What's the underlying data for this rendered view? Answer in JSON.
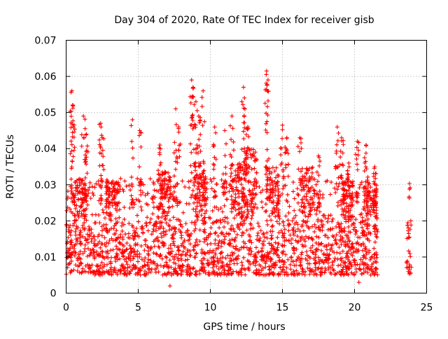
{
  "chart_data": {
    "type": "scatter",
    "title": "Day 304 of 2020, Rate Of TEC Index for receiver gisb",
    "xlabel": "GPS time / hours",
    "ylabel": "ROTI / TECUs",
    "xlim": [
      0,
      25
    ],
    "ylim": [
      0,
      0.07
    ],
    "x_ticks": [
      "0",
      "5",
      "10",
      "15",
      "20",
      "25"
    ],
    "y_ticks": [
      "0",
      "0.01",
      "0.02",
      "0.03",
      "0.04",
      "0.05",
      "0.06",
      "0.07"
    ],
    "grid": true,
    "marker": "plus",
    "color": "#ff0000",
    "series": [
      {
        "coverage": [
          [
            0.0,
            21.6
          ],
          [
            23.6,
            23.95
          ]
        ],
        "baseline_y": [
          0.005,
          0.02
        ],
        "spikes": [
          {
            "x": 0.4,
            "y": 0.056
          },
          {
            "x": 0.45,
            "y": 0.052
          },
          {
            "x": 0.5,
            "y": 0.046
          },
          {
            "x": 1.2,
            "y": 0.049
          },
          {
            "x": 1.4,
            "y": 0.044
          },
          {
            "x": 2.4,
            "y": 0.047
          },
          {
            "x": 2.5,
            "y": 0.043
          },
          {
            "x": 4.6,
            "y": 0.048
          },
          {
            "x": 5.1,
            "y": 0.045
          },
          {
            "x": 6.5,
            "y": 0.041
          },
          {
            "x": 7.6,
            "y": 0.051
          },
          {
            "x": 7.8,
            "y": 0.046
          },
          {
            "x": 8.7,
            "y": 0.059
          },
          {
            "x": 8.8,
            "y": 0.057
          },
          {
            "x": 9.0,
            "y": 0.053
          },
          {
            "x": 9.2,
            "y": 0.049
          },
          {
            "x": 9.5,
            "y": 0.056
          },
          {
            "x": 10.3,
            "y": 0.046
          },
          {
            "x": 11.0,
            "y": 0.045
          },
          {
            "x": 11.5,
            "y": 0.049
          },
          {
            "x": 12.3,
            "y": 0.057
          },
          {
            "x": 12.4,
            "y": 0.051
          },
          {
            "x": 12.6,
            "y": 0.046
          },
          {
            "x": 13.9,
            "y": 0.0615
          },
          {
            "x": 14.0,
            "y": 0.059
          },
          {
            "x": 15.0,
            "y": 0.0465
          },
          {
            "x": 15.3,
            "y": 0.043
          },
          {
            "x": 16.2,
            "y": 0.043
          },
          {
            "x": 17.5,
            "y": 0.038
          },
          {
            "x": 18.8,
            "y": 0.046
          },
          {
            "x": 19.1,
            "y": 0.043
          },
          {
            "x": 19.6,
            "y": 0.036
          },
          {
            "x": 20.2,
            "y": 0.042
          },
          {
            "x": 20.8,
            "y": 0.041
          },
          {
            "x": 21.4,
            "y": 0.035
          }
        ],
        "bursts": [
          {
            "x": 1.0,
            "y": 0.032
          },
          {
            "x": 3.2,
            "y": 0.031
          },
          {
            "x": 6.8,
            "y": 0.034
          },
          {
            "x": 9.3,
            "y": 0.036
          },
          {
            "x": 11.9,
            "y": 0.036
          },
          {
            "x": 12.8,
            "y": 0.04
          },
          {
            "x": 14.3,
            "y": 0.035
          },
          {
            "x": 16.8,
            "y": 0.035
          },
          {
            "x": 19.5,
            "y": 0.031
          },
          {
            "x": 21.1,
            "y": 0.03
          }
        ],
        "isolated_points": [
          {
            "x": 7.2,
            "y": 0.002
          },
          {
            "x": 20.3,
            "y": 0.003
          },
          {
            "x": 23.9,
            "y": 0.02
          }
        ]
      }
    ]
  }
}
